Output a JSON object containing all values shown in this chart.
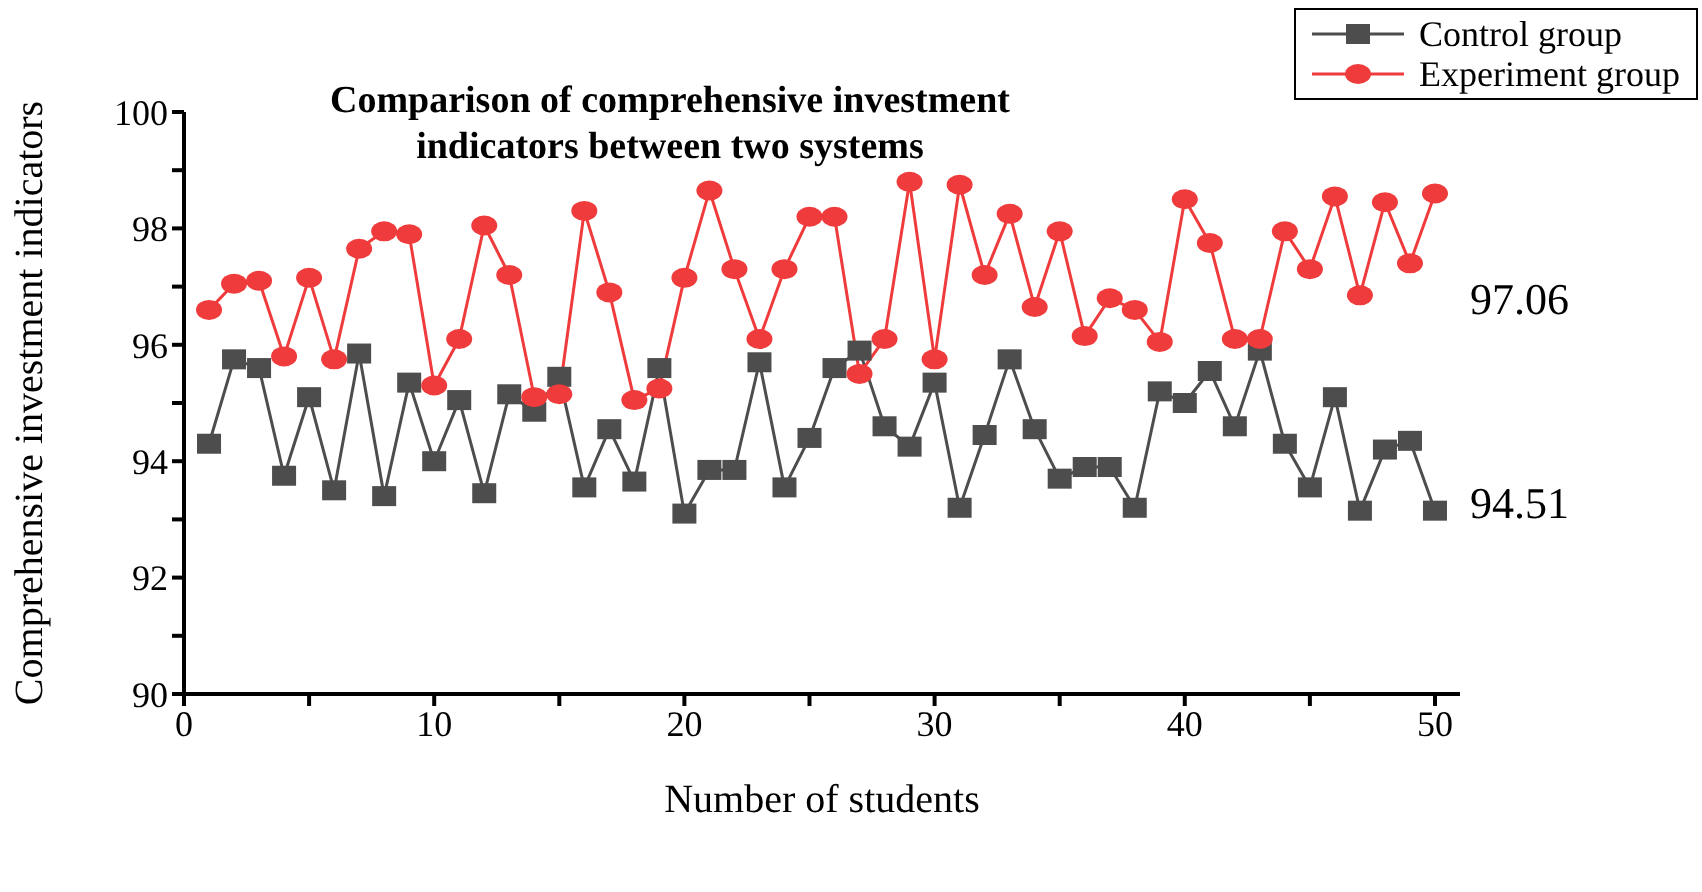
{
  "chart_data": {
    "type": "line",
    "title": "Comparison of comprehensive investment indicators between two systems",
    "xlabel": "Number of students",
    "ylabel": "Comprehensive investment indicators",
    "x": [
      1,
      2,
      3,
      4,
      5,
      6,
      7,
      8,
      9,
      10,
      11,
      12,
      13,
      14,
      15,
      16,
      17,
      18,
      19,
      20,
      21,
      22,
      23,
      24,
      25,
      26,
      27,
      28,
      29,
      30,
      31,
      32,
      33,
      34,
      35,
      36,
      37,
      38,
      39,
      40,
      41,
      42,
      43,
      44,
      45,
      46,
      47,
      48,
      49,
      50
    ],
    "series": [
      {
        "name": "Control group",
        "color": "#4d4d4d",
        "marker": "square",
        "values": [
          94.3,
          95.75,
          95.6,
          93.75,
          95.1,
          93.5,
          95.85,
          93.4,
          95.35,
          94.0,
          95.05,
          93.45,
          95.15,
          94.85,
          95.45,
          93.55,
          94.55,
          93.65,
          95.6,
          93.1,
          93.85,
          93.85,
          95.7,
          93.55,
          94.4,
          95.6,
          95.9,
          94.6,
          94.25,
          95.35,
          93.2,
          94.45,
          95.75,
          94.55,
          93.7,
          93.9,
          93.9,
          93.2,
          95.2,
          95.0,
          95.55,
          94.6,
          95.9,
          94.3,
          93.55,
          95.1,
          93.15,
          94.2,
          94.35,
          93.15
        ]
      },
      {
        "name": "Experiment group",
        "color": "#ef3b3b",
        "marker": "circle",
        "values": [
          96.6,
          97.05,
          97.1,
          95.8,
          97.15,
          95.75,
          97.65,
          97.95,
          97.9,
          95.3,
          96.1,
          98.05,
          97.2,
          95.1,
          95.15,
          98.3,
          96.9,
          95.05,
          95.25,
          97.15,
          98.65,
          97.3,
          96.1,
          97.3,
          98.2,
          98.2,
          95.5,
          96.1,
          98.8,
          95.75,
          98.75,
          97.2,
          98.25,
          96.65,
          97.95,
          96.15,
          96.8,
          96.6,
          96.05,
          98.5,
          97.75,
          96.1,
          96.1,
          97.95,
          97.3,
          98.55,
          96.85,
          98.45,
          97.4,
          98.6
        ]
      }
    ],
    "annotations": [
      "97.06",
      "94.51"
    ],
    "xlim": [
      0,
      51
    ],
    "xticks": [
      0,
      {
        "value": 5,
        "label": null
      },
      10,
      {
        "value": 15,
        "label": null
      },
      20,
      {
        "value": 25,
        "label": null
      },
      30,
      {
        "value": 35,
        "label": null
      },
      40,
      {
        "value": 45,
        "label": null
      },
      50
    ],
    "ylim": [
      90,
      100
    ],
    "yticks": [
      90,
      {
        "value": 91,
        "label": null
      },
      92,
      {
        "value": 93,
        "label": null
      },
      94,
      {
        "value": 95,
        "label": null
      },
      96,
      {
        "value": 97,
        "label": null
      },
      98,
      {
        "value": 99,
        "label": null
      },
      100
    ],
    "grid": false,
    "legend": "top right",
    "line_style": "solid"
  }
}
